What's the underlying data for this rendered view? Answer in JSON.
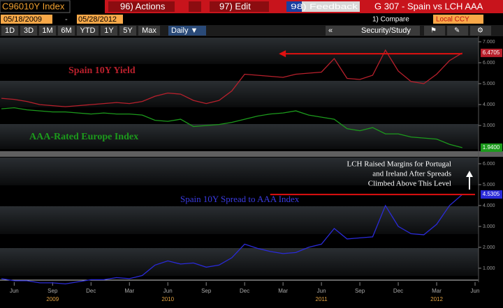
{
  "ui": {
    "ticker": "C96010Y Index",
    "menu": [
      "96) Actions",
      "97) Edit",
      "98) Feedback"
    ],
    "page_title": "G 307 - Spain vs LCH AAA",
    "start_date": "05/18/2009",
    "date_separator": "-",
    "end_date": "05/28/2012",
    "compare": "1) Compare",
    "currency": "Local CCY",
    "range_buttons": [
      "1D",
      "3D",
      "1M",
      "6M",
      "YTD",
      "1Y",
      "5Y",
      "Max"
    ],
    "frequency": "Daily ▼",
    "collapse": "«",
    "study": "Security/Study"
  },
  "chart_data": [
    {
      "type": "line",
      "x": [
        "2009-05",
        "2009-06",
        "2009-07",
        "2009-08",
        "2009-09",
        "2009-10",
        "2009-11",
        "2009-12",
        "2010-01",
        "2010-02",
        "2010-03",
        "2010-04",
        "2010-05",
        "2010-06",
        "2010-07",
        "2010-08",
        "2010-09",
        "2010-10",
        "2010-11",
        "2010-12",
        "2011-01",
        "2011-02",
        "2011-03",
        "2011-04",
        "2011-05",
        "2011-06",
        "2011-07",
        "2011-08",
        "2011-09",
        "2011-10",
        "2011-11",
        "2011-12",
        "2012-01",
        "2012-02",
        "2012-03",
        "2012-04",
        "2012-05"
      ],
      "xlim": [
        "2009-05",
        "2012-06"
      ],
      "ylim": [
        1.87,
        7.2
      ],
      "yticks": [
        {
          "value": 7,
          "label": "7.000"
        },
        {
          "value": 6,
          "label": "6.000"
        },
        {
          "value": 5,
          "label": "5.000"
        },
        {
          "value": 4,
          "label": "4.000"
        },
        {
          "value": 3,
          "label": "3.000"
        }
      ],
      "series": [
        {
          "name": "Spain 10Y Yield",
          "color": "#b8202c",
          "values": [
            4.3,
            4.25,
            4.15,
            4.0,
            3.95,
            3.9,
            3.95,
            4.0,
            4.05,
            4.1,
            4.05,
            4.15,
            4.4,
            4.55,
            4.5,
            4.2,
            4.05,
            4.2,
            4.65,
            5.45,
            5.4,
            5.35,
            5.3,
            5.45,
            5.5,
            5.55,
            6.2,
            5.25,
            5.2,
            5.4,
            6.6,
            5.6,
            5.1,
            5.0,
            5.45,
            6.1,
            6.4705
          ]
        },
        {
          "name": "AAA-Rated Europe Index",
          "color": "#1c9a1c",
          "values": [
            3.8,
            3.85,
            3.75,
            3.7,
            3.65,
            3.65,
            3.6,
            3.55,
            3.6,
            3.55,
            3.55,
            3.5,
            3.25,
            3.2,
            3.3,
            2.95,
            3.0,
            3.05,
            3.15,
            3.3,
            3.45,
            3.55,
            3.6,
            3.7,
            3.5,
            3.4,
            3.3,
            2.85,
            2.75,
            2.9,
            2.6,
            2.6,
            2.45,
            2.4,
            2.35,
            2.1,
            1.94
          ],
          "value_labels": [
            null,
            null,
            null,
            null,
            null,
            null,
            null,
            null,
            null,
            null,
            null,
            null,
            null,
            null,
            null,
            null,
            null,
            null,
            null,
            null,
            null,
            null,
            null,
            null,
            null,
            null,
            null,
            null,
            null,
            null,
            null,
            null,
            null,
            null,
            null,
            null,
            "1.9400"
          ]
        }
      ],
      "hlines": [
        {
          "value": 6.43,
          "from": "2011-03",
          "to": "2012-05",
          "color": "#e01010"
        }
      ]
    },
    {
      "type": "line",
      "x": [
        "2009-05",
        "2009-06",
        "2009-07",
        "2009-08",
        "2009-09",
        "2009-10",
        "2009-11",
        "2009-12",
        "2010-01",
        "2010-02",
        "2010-03",
        "2010-04",
        "2010-05",
        "2010-06",
        "2010-07",
        "2010-08",
        "2010-09",
        "2010-10",
        "2010-11",
        "2010-12",
        "2011-01",
        "2011-02",
        "2011-03",
        "2011-04",
        "2011-05",
        "2011-06",
        "2011-07",
        "2011-08",
        "2011-09",
        "2011-10",
        "2011-11",
        "2011-12",
        "2012-01",
        "2012-02",
        "2012-03",
        "2012-04",
        "2012-05"
      ],
      "xlim": [
        "2009-05",
        "2012-06"
      ],
      "ylim": [
        0.33,
        6.3
      ],
      "yticks": [
        {
          "value": 6,
          "label": "6.000"
        },
        {
          "value": 5,
          "label": "5.000"
        },
        {
          "value": 4,
          "label": "4.000"
        },
        {
          "value": 3,
          "label": "3.000"
        },
        {
          "value": 2,
          "label": "2.000"
        },
        {
          "value": 1,
          "label": "1.000"
        }
      ],
      "xticks": [
        {
          "value": "2009-06",
          "label": "Jun"
        },
        {
          "value": "2009-09",
          "label": "Sep"
        },
        {
          "value": "2009-12",
          "label": "Dec"
        },
        {
          "value": "2010-03",
          "label": "Mar"
        },
        {
          "value": "2010-06",
          "label": "Jun"
        },
        {
          "value": "2010-09",
          "label": "Sep"
        },
        {
          "value": "2010-12",
          "label": "Dec"
        },
        {
          "value": "2011-03",
          "label": "Mar"
        },
        {
          "value": "2011-06",
          "label": "Jun"
        },
        {
          "value": "2011-09",
          "label": "Sep"
        },
        {
          "value": "2011-12",
          "label": "Dec"
        },
        {
          "value": "2012-03",
          "label": "Mar"
        },
        {
          "value": "2012-06",
          "label": "Jun"
        }
      ],
      "year_labels": [
        {
          "value": "2009-09",
          "label": "2009"
        },
        {
          "value": "2010-06",
          "label": "2010"
        },
        {
          "value": "2011-06",
          "label": "2011"
        },
        {
          "value": "2012-03",
          "label": "2012"
        }
      ],
      "series": [
        {
          "name": "Spain 10Y Spread to AAA Index",
          "color": "#2a2ad8",
          "values": [
            0.5,
            0.4,
            0.4,
            0.3,
            0.3,
            0.25,
            0.35,
            0.45,
            0.45,
            0.55,
            0.5,
            0.65,
            1.15,
            1.35,
            1.2,
            1.25,
            1.05,
            1.15,
            1.5,
            2.15,
            1.95,
            1.8,
            1.7,
            1.75,
            2.0,
            2.15,
            2.9,
            2.4,
            2.45,
            2.5,
            4.0,
            3.0,
            2.65,
            2.6,
            3.1,
            4.0,
            4.5305
          ]
        }
      ],
      "hlines": [
        {
          "value": 4.53,
          "from": "2011-02",
          "to": "2012-06",
          "color": "#e01010"
        }
      ],
      "annotation": [
        "LCH Raised Margins for Portugal",
        "and Ireland After Spreads",
        "Climbed Above This Level"
      ]
    }
  ]
}
